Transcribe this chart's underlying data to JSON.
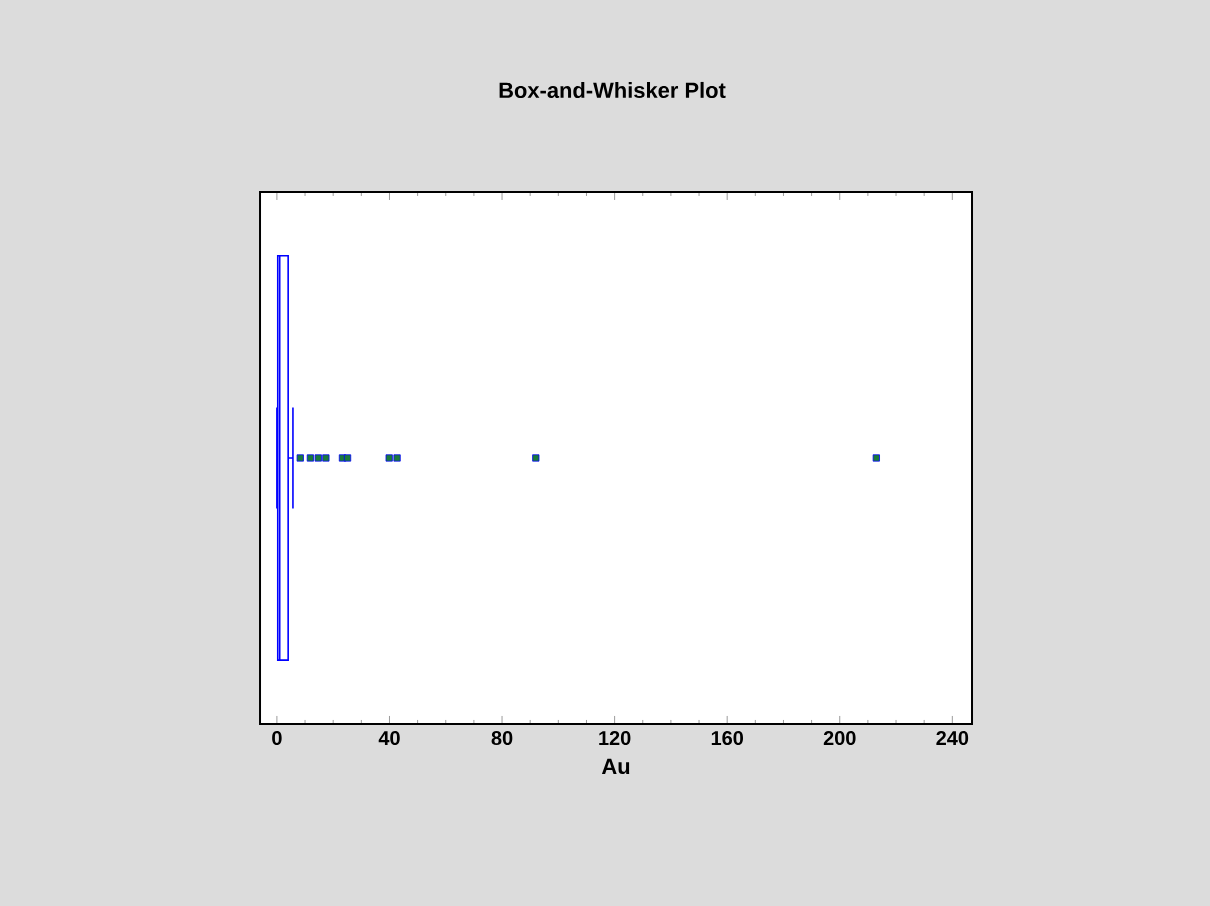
{
  "chart_data": {
    "type": "box",
    "title": "Box-and-Whisker Plot",
    "xlabel": "Au",
    "orientation": "horizontal",
    "categories": [
      null
    ],
    "boxes": [
      {
        "low": 0,
        "q1": 0.3,
        "median": 1,
        "q3": 4,
        "high": 5.7,
        "outliers": [
          8.3,
          11.9,
          14.7,
          17.4,
          23.3,
          25.1,
          39.9,
          42.7,
          92,
          213
        ]
      }
    ],
    "color": "#0000ff",
    "marker": "square",
    "xlim": [
      -6,
      247
    ],
    "xticks": [
      0,
      40,
      80,
      120,
      160,
      200,
      240
    ]
  }
}
